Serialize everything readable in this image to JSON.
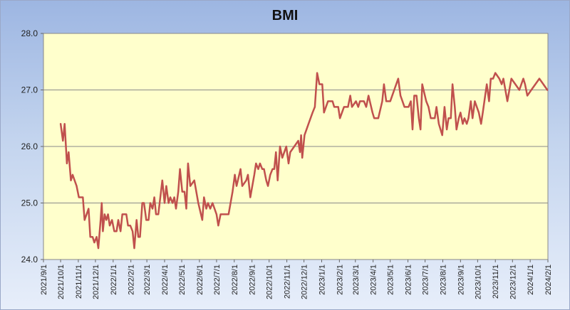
{
  "chart_data": {
    "type": "line",
    "title": "BMI",
    "xlabel": "",
    "ylabel": "",
    "ylim": [
      24.0,
      28.0
    ],
    "y_ticks": [
      "24.0",
      "25.0",
      "26.0",
      "27.0",
      "28.0"
    ],
    "x_tick_labels": [
      "2021/9/1",
      "2021/10/1",
      "2021/11/1",
      "2021/12/1",
      "2022/1/1",
      "2022/2/1",
      "2022/3/1",
      "2022/4/1",
      "2022/5/1",
      "2022/6/1",
      "2022/7/1",
      "2022/8/1",
      "2022/9/1",
      "2022/10/1",
      "2022/11/1",
      "2022/12/1",
      "2023/1/1",
      "2023/2/1",
      "2023/3/1",
      "2023/4/1",
      "2023/5/1",
      "2023/6/1",
      "2023/7/1",
      "2023/8/1",
      "2023/9/1",
      "2023/10/1",
      "2023/11/1",
      "2023/12/1",
      "2024/1/1",
      "2024/2/1"
    ],
    "grid": true,
    "colors": {
      "line": "#c0504d",
      "plot_bg": "#ffffcc",
      "grid": "#8a8a8a"
    },
    "series": [
      {
        "values": [
          [
            "2021/10/1",
            26.4
          ],
          [
            "2021/10/5",
            26.1
          ],
          [
            "2021/10/8",
            26.4
          ],
          [
            "2021/10/12",
            25.7
          ],
          [
            "2021/10/15",
            25.9
          ],
          [
            "2021/10/19",
            25.4
          ],
          [
            "2021/10/22",
            25.5
          ],
          [
            "2021/10/29",
            25.3
          ],
          [
            "2021/11/2",
            25.1
          ],
          [
            "2021/11/9",
            25.1
          ],
          [
            "2021/11/12",
            24.7
          ],
          [
            "2021/11/19",
            24.9
          ],
          [
            "2021/11/22",
            24.4
          ],
          [
            "2021/11/26",
            24.4
          ],
          [
            "2021/11/29",
            24.3
          ],
          [
            "2021/12/3",
            24.4
          ],
          [
            "2021/12/6",
            24.2
          ],
          [
            "2021/12/10",
            24.7
          ],
          [
            "2021/12/12",
            25.0
          ],
          [
            "2021/12/14",
            24.5
          ],
          [
            "2021/12/17",
            24.8
          ],
          [
            "2021/12/20",
            24.7
          ],
          [
            "2021/12/23",
            24.8
          ],
          [
            "2021/12/26",
            24.6
          ],
          [
            "2021/12/30",
            24.7
          ],
          [
            "2022/1/3",
            24.5
          ],
          [
            "2022/1/7",
            24.5
          ],
          [
            "2022/1/10",
            24.7
          ],
          [
            "2022/1/14",
            24.5
          ],
          [
            "2022/1/17",
            24.8
          ],
          [
            "2022/1/24",
            24.8
          ],
          [
            "2022/1/27",
            24.6
          ],
          [
            "2022/1/31",
            24.6
          ],
          [
            "2022/2/4",
            24.5
          ],
          [
            "2022/2/7",
            24.2
          ],
          [
            "2022/2/11",
            24.7
          ],
          [
            "2022/2/14",
            24.4
          ],
          [
            "2022/2/17",
            24.4
          ],
          [
            "2022/2/21",
            25.0
          ],
          [
            "2022/2/24",
            25.0
          ],
          [
            "2022/2/28",
            24.7
          ],
          [
            "2022/3/4",
            24.7
          ],
          [
            "2022/3/7",
            25.0
          ],
          [
            "2022/3/11",
            24.9
          ],
          [
            "2022/3/14",
            25.1
          ],
          [
            "2022/3/17",
            24.8
          ],
          [
            "2022/3/21",
            24.8
          ],
          [
            "2022/3/28",
            25.4
          ],
          [
            "2022/4/1",
            25.0
          ],
          [
            "2022/4/4",
            25.3
          ],
          [
            "2022/4/8",
            25.0
          ],
          [
            "2022/4/11",
            25.1
          ],
          [
            "2022/4/15",
            25.0
          ],
          [
            "2022/4/18",
            25.1
          ],
          [
            "2022/4/21",
            24.9
          ],
          [
            "2022/4/25",
            25.2
          ],
          [
            "2022/4/28",
            25.6
          ],
          [
            "2022/5/2",
            25.2
          ],
          [
            "2022/5/6",
            25.2
          ],
          [
            "2022/5/9",
            24.9
          ],
          [
            "2022/5/12",
            25.7
          ],
          [
            "2022/5/16",
            25.3
          ],
          [
            "2022/5/23",
            25.4
          ],
          [
            "2022/5/30",
            25.0
          ],
          [
            "2022/6/6",
            24.7
          ],
          [
            "2022/6/9",
            25.1
          ],
          [
            "2022/6/13",
            24.9
          ],
          [
            "2022/6/16",
            25.0
          ],
          [
            "2022/6/20",
            24.9
          ],
          [
            "2022/6/24",
            25.0
          ],
          [
            "2022/7/1",
            24.8
          ],
          [
            "2022/7/4",
            24.6
          ],
          [
            "2022/7/8",
            24.8
          ],
          [
            "2022/7/22",
            24.8
          ],
          [
            "2022/7/29",
            25.2
          ],
          [
            "2022/8/2",
            25.5
          ],
          [
            "2022/8/5",
            25.3
          ],
          [
            "2022/8/12",
            25.6
          ],
          [
            "2022/8/15",
            25.3
          ],
          [
            "2022/8/22",
            25.4
          ],
          [
            "2022/8/25",
            25.5
          ],
          [
            "2022/8/29",
            25.1
          ],
          [
            "2022/9/5",
            25.5
          ],
          [
            "2022/9/8",
            25.7
          ],
          [
            "2022/9/12",
            25.6
          ],
          [
            "2022/9/15",
            25.7
          ],
          [
            "2022/9/19",
            25.6
          ],
          [
            "2022/9/22",
            25.6
          ],
          [
            "2022/9/26",
            25.4
          ],
          [
            "2022/9/29",
            25.3
          ],
          [
            "2022/10/3",
            25.5
          ],
          [
            "2022/10/7",
            25.6
          ],
          [
            "2022/10/10",
            25.6
          ],
          [
            "2022/10/13",
            25.9
          ],
          [
            "2022/10/16",
            25.4
          ],
          [
            "2022/10/20",
            26.0
          ],
          [
            "2022/10/24",
            25.8
          ],
          [
            "2022/10/31",
            26.0
          ],
          [
            "2022/11/4",
            25.7
          ],
          [
            "2022/11/7",
            25.9
          ],
          [
            "2022/11/14",
            26.0
          ],
          [
            "2022/11/21",
            26.1
          ],
          [
            "2022/11/24",
            25.9
          ],
          [
            "2022/11/26",
            26.2
          ],
          [
            "2022/11/28",
            25.8
          ],
          [
            "2022/12/2",
            26.2
          ],
          [
            "2022/12/9",
            26.4
          ],
          [
            "2022/12/16",
            26.6
          ],
          [
            "2022/12/20",
            26.7
          ],
          [
            "2022/12/24",
            27.3
          ],
          [
            "2022/12/28",
            27.1
          ],
          [
            "2023/1/2",
            27.1
          ],
          [
            "2023/1/5",
            26.6
          ],
          [
            "2023/1/12",
            26.8
          ],
          [
            "2023/1/20",
            26.8
          ],
          [
            "2023/1/23",
            26.7
          ],
          [
            "2023/1/30",
            26.7
          ],
          [
            "2023/2/2",
            26.5
          ],
          [
            "2023/2/9",
            26.7
          ],
          [
            "2023/2/16",
            26.7
          ],
          [
            "2023/2/20",
            26.9
          ],
          [
            "2023/2/23",
            26.7
          ],
          [
            "2023/3/2",
            26.8
          ],
          [
            "2023/3/6",
            26.7
          ],
          [
            "2023/3/9",
            26.8
          ],
          [
            "2023/3/16",
            26.8
          ],
          [
            "2023/3/20",
            26.7
          ],
          [
            "2023/3/24",
            26.9
          ],
          [
            "2023/3/31",
            26.6
          ],
          [
            "2023/4/3",
            26.5
          ],
          [
            "2023/4/10",
            26.5
          ],
          [
            "2023/4/17",
            26.8
          ],
          [
            "2023/4/20",
            27.1
          ],
          [
            "2023/4/24",
            26.8
          ],
          [
            "2023/5/1",
            26.8
          ],
          [
            "2023/5/8",
            27.0
          ],
          [
            "2023/5/15",
            27.2
          ],
          [
            "2023/5/19",
            26.9
          ],
          [
            "2023/5/26",
            26.7
          ],
          [
            "2023/6/2",
            26.7
          ],
          [
            "2023/6/6",
            26.8
          ],
          [
            "2023/6/9",
            26.3
          ],
          [
            "2023/6/12",
            26.9
          ],
          [
            "2023/6/16",
            26.9
          ],
          [
            "2023/6/20",
            26.5
          ],
          [
            "2023/6/23",
            26.3
          ],
          [
            "2023/6/26",
            27.1
          ],
          [
            "2023/7/3",
            26.8
          ],
          [
            "2023/7/7",
            26.7
          ],
          [
            "2023/7/11",
            26.5
          ],
          [
            "2023/7/18",
            26.5
          ],
          [
            "2023/7/21",
            26.7
          ],
          [
            "2023/7/25",
            26.4
          ],
          [
            "2023/7/31",
            26.2
          ],
          [
            "2023/8/4",
            26.7
          ],
          [
            "2023/8/8",
            26.3
          ],
          [
            "2023/8/11",
            26.5
          ],
          [
            "2023/8/15",
            26.5
          ],
          [
            "2023/8/18",
            27.1
          ],
          [
            "2023/8/22",
            26.7
          ],
          [
            "2023/8/25",
            26.3
          ],
          [
            "2023/8/29",
            26.5
          ],
          [
            "2023/9/1",
            26.6
          ],
          [
            "2023/9/5",
            26.4
          ],
          [
            "2023/9/8",
            26.5
          ],
          [
            "2023/9/12",
            26.4
          ],
          [
            "2023/9/15",
            26.5
          ],
          [
            "2023/9/19",
            26.8
          ],
          [
            "2023/9/22",
            26.5
          ],
          [
            "2023/9/26",
            26.8
          ],
          [
            "2023/10/3",
            26.6
          ],
          [
            "2023/10/7",
            26.4
          ],
          [
            "2023/10/10",
            26.6
          ],
          [
            "2023/10/17",
            27.1
          ],
          [
            "2023/10/21",
            26.8
          ],
          [
            "2023/10/24",
            27.2
          ],
          [
            "2023/10/28",
            27.2
          ],
          [
            "2023/11/1",
            27.3
          ],
          [
            "2023/11/8",
            27.2
          ],
          [
            "2023/11/12",
            27.1
          ],
          [
            "2023/11/15",
            27.2
          ],
          [
            "2023/11/22",
            26.8
          ],
          [
            "2023/11/29",
            27.2
          ],
          [
            "2023/12/6",
            27.1
          ],
          [
            "2023/12/13",
            27.0
          ],
          [
            "2023/12/20",
            27.2
          ],
          [
            "2023/12/23",
            27.1
          ],
          [
            "2023/12/27",
            26.9
          ],
          [
            "2024/1/3",
            27.0
          ],
          [
            "2024/1/10",
            27.1
          ],
          [
            "2024/1/17",
            27.2
          ],
          [
            "2024/1/24",
            27.1
          ],
          [
            "2024/1/31",
            27.0
          ]
        ]
      }
    ]
  }
}
